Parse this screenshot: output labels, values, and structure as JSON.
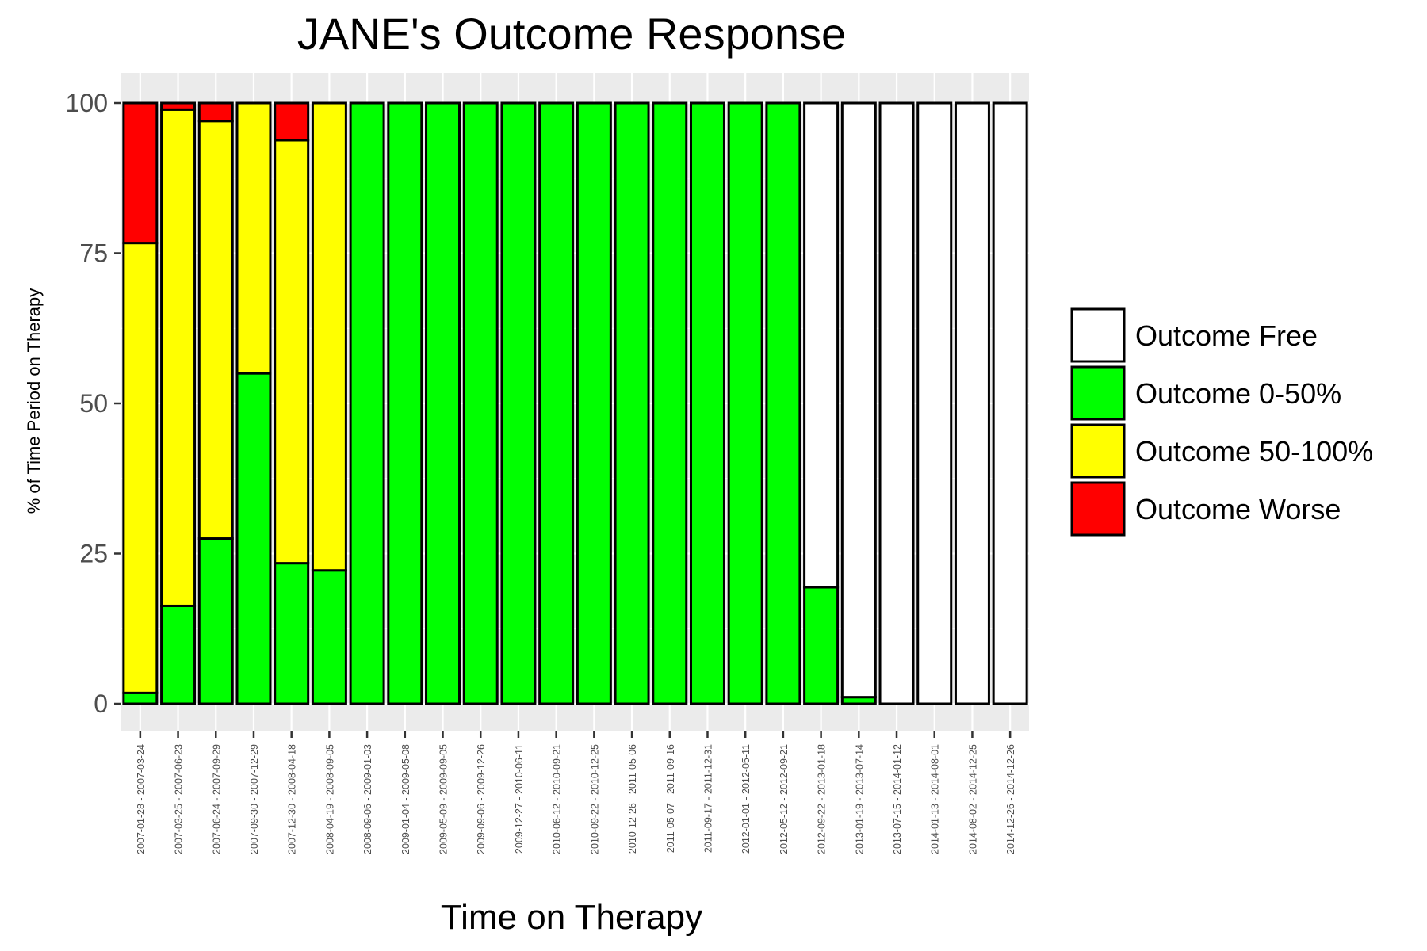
{
  "chart_data": {
    "type": "bar",
    "stacked": true,
    "title": "JANE's Outcome Response",
    "xlabel": "Time on Therapy",
    "ylabel": "% of Time Period on Therapy",
    "ylim": [
      0,
      100
    ],
    "yticks": [
      0,
      25,
      50,
      75,
      100
    ],
    "grid": true,
    "legend_position": "right",
    "categories": [
      "2007-01-28 - 2007-03-24",
      "2007-03-25 - 2007-06-23",
      "2007-06-24 - 2007-09-29",
      "2007-09-30 - 2007-12-29",
      "2007-12-30 - 2008-04-18",
      "2008-04-19 - 2008-09-05",
      "2008-09-06 - 2009-01-03",
      "2009-01-04 - 2009-05-08",
      "2009-05-09 - 2009-09-05",
      "2009-09-06 - 2009-12-26",
      "2009-12-27 - 2010-06-11",
      "2010-06-12 - 2010-09-21",
      "2010-09-22 - 2010-12-25",
      "2010-12-26 - 2011-05-06",
      "2011-05-07 - 2011-09-16",
      "2011-09-17 - 2011-12-31",
      "2012-01-01 - 2012-05-11",
      "2012-05-12 - 2012-09-21",
      "2012-09-22 - 2013-01-18",
      "2013-01-19 - 2013-07-14",
      "2013-07-15 - 2014-01-12",
      "2014-01-13 - 2014-08-01",
      "2014-08-02 - 2014-12-25",
      "2014-12-26 - 2014-12-26"
    ],
    "series": [
      {
        "name": "Outcome Free",
        "color": "#ffffff",
        "values": [
          0,
          0,
          0,
          0,
          0,
          0,
          0,
          0,
          0,
          0,
          0,
          0,
          0,
          0,
          0,
          0,
          0,
          0,
          80.6,
          98.9,
          100,
          100,
          100,
          100
        ]
      },
      {
        "name": "Outcome 0-50%",
        "color": "#00ff00",
        "values": [
          1.8,
          16.3,
          27.5,
          55.0,
          23.4,
          22.2,
          100,
          100,
          100,
          100,
          100,
          100,
          100,
          100,
          100,
          100,
          100,
          100,
          19.4,
          1.1,
          0,
          0,
          0,
          0
        ]
      },
      {
        "name": "Outcome 50-100%",
        "color": "#ffff00",
        "values": [
          74.9,
          82.6,
          69.5,
          45.0,
          70.4,
          77.8,
          0,
          0,
          0,
          0,
          0,
          0,
          0,
          0,
          0,
          0,
          0,
          0,
          0,
          0,
          0,
          0,
          0,
          0
        ]
      },
      {
        "name": "Outcome Worse",
        "color": "#ff0000",
        "values": [
          23.3,
          1.1,
          3.0,
          0,
          6.2,
          0,
          0,
          0,
          0,
          0,
          0,
          0,
          0,
          0,
          0,
          0,
          0,
          0,
          0,
          0,
          0,
          0,
          0,
          0
        ]
      }
    ],
    "stack_order_bottom_to_top": [
      "Outcome 0-50%",
      "Outcome 50-100%",
      "Outcome Worse"
    ],
    "legend_order": [
      "Outcome Free",
      "Outcome 0-50%",
      "Outcome 50-100%",
      "Outcome Worse"
    ],
    "panel_background": "#ebebeb",
    "gridline_color": "#ffffff",
    "bar_outline_color": "#000000"
  }
}
